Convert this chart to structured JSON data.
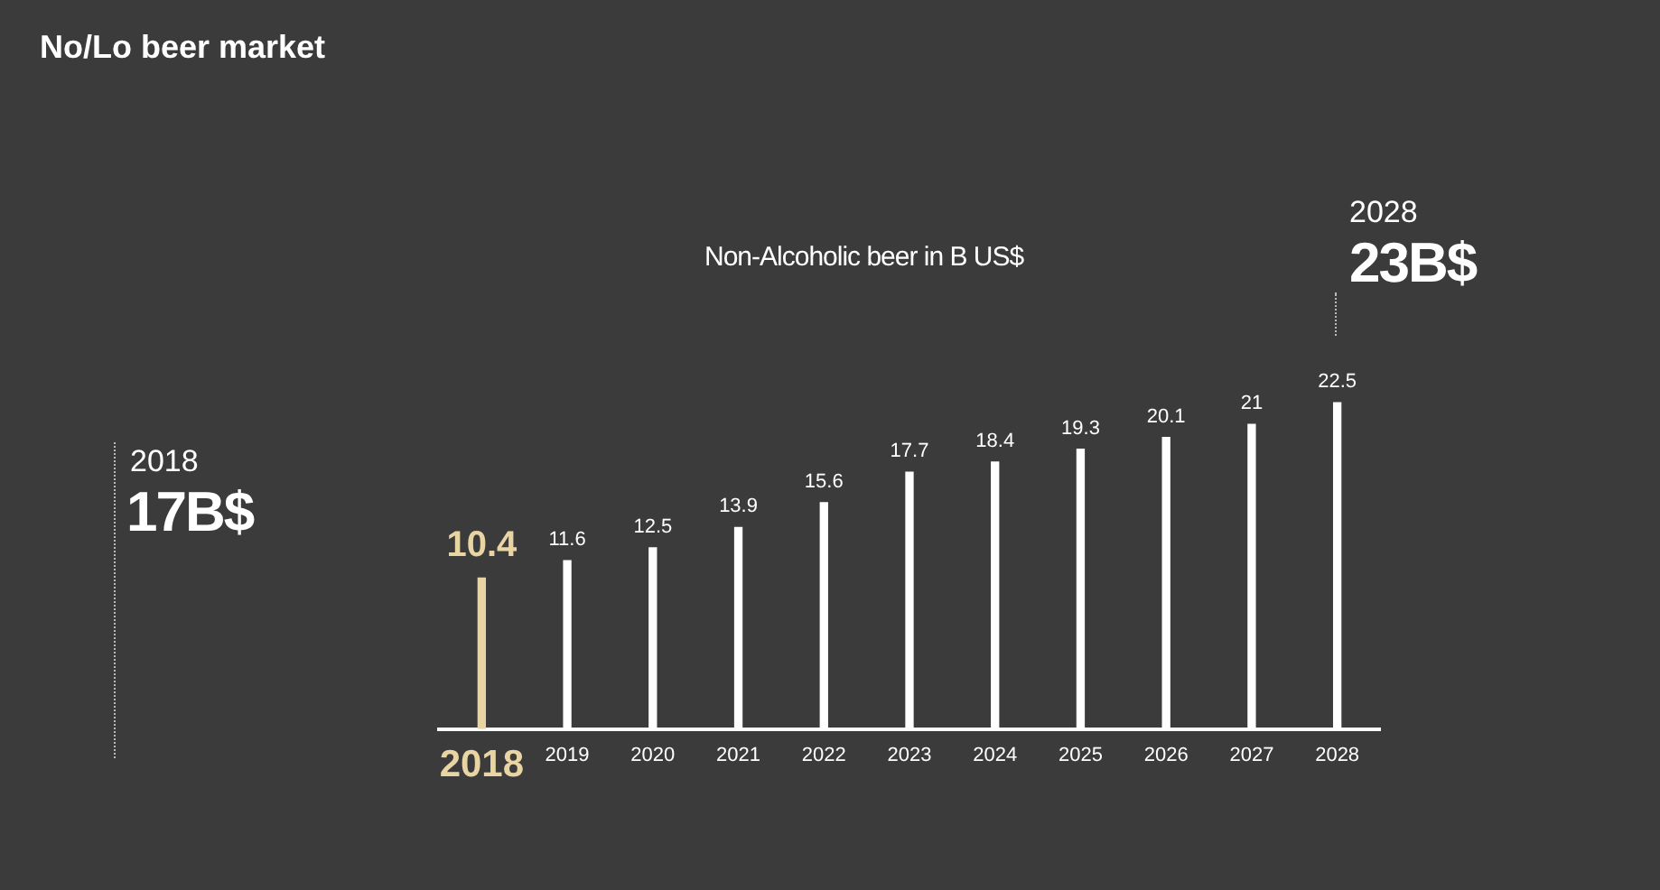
{
  "chart_data": {
    "type": "bar",
    "title": "No/Lo beer market",
    "subtitle": "Non-Alcoholic beer in B US$",
    "categories": [
      "2018",
      "2019",
      "2020",
      "2021",
      "2022",
      "2023",
      "2024",
      "2025",
      "2026",
      "2027",
      "2028"
    ],
    "values": [
      10.4,
      11.6,
      12.5,
      13.9,
      15.6,
      17.7,
      18.4,
      19.3,
      20.1,
      21,
      22.5
    ],
    "colors": [
      "#e9d5a4",
      "#ffffff",
      "#ffffff",
      "#ffffff",
      "#ffffff",
      "#ffffff",
      "#ffffff",
      "#ffffff",
      "#ffffff",
      "#ffffff",
      "#ffffff"
    ],
    "data_labels": true,
    "grid": false,
    "legend": false,
    "annotations": [
      "2018",
      "17B$",
      "2028",
      "23B$"
    ]
  }
}
